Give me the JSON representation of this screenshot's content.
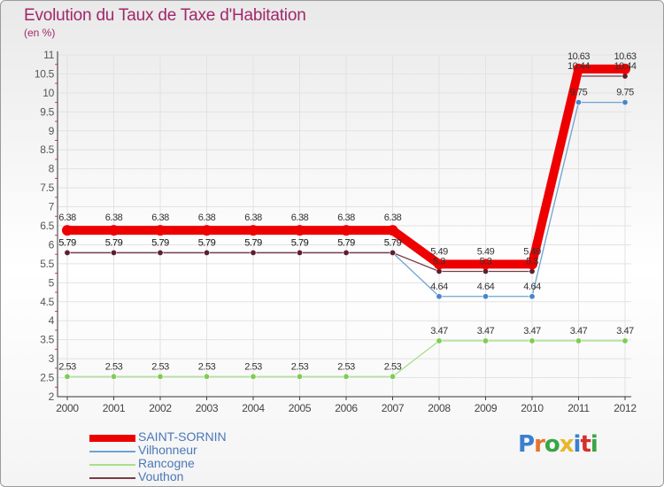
{
  "header": {
    "title": "Evolution du Taux de Taxe d'Habitation",
    "unit": "(en %)"
  },
  "brand": {
    "text": "Proxiti",
    "letter_colors": [
      "#3a7fd0",
      "#e8732a",
      "#3aa544",
      "#e8b62a",
      "#3a7fd0",
      "#d6302b",
      "#3aa544"
    ]
  },
  "chart_data": {
    "type": "line",
    "title": "Evolution du Taux de Taxe d'Habitation",
    "ylabel": "(en %)",
    "xlabel": "",
    "x": [
      "2000",
      "2001",
      "2002",
      "2003",
      "2004",
      "2005",
      "2006",
      "2007",
      "2008",
      "2009",
      "2010",
      "2011",
      "2012"
    ],
    "ylim": [
      2,
      11
    ],
    "yticks": [
      "2",
      "2.5",
      "3",
      "3.5",
      "4",
      "4.5",
      "5",
      "5.5",
      "6",
      "6.5",
      "7",
      "7.5",
      "8",
      "8.5",
      "9",
      "9.5",
      "10",
      "10.5",
      "11"
    ],
    "grid": true,
    "legend_position": "bottom-left",
    "series": [
      {
        "name": "SAINT-SORNIN",
        "color": "#ee0000",
        "emphasis": true,
        "values": [
          6.38,
          6.38,
          6.38,
          6.38,
          6.38,
          6.38,
          6.38,
          6.38,
          5.49,
          5.49,
          5.49,
          10.63,
          10.63
        ],
        "labels": [
          "6.38",
          "6.38",
          "6.38",
          "6.38",
          "6.38",
          "6.38",
          "6.38",
          "6.38",
          "5.49",
          "5.49",
          "5.49",
          "10.63",
          "10.63"
        ]
      },
      {
        "name": "Vilhonneur",
        "color": "#6fa3d2",
        "marker": "#4a86c8",
        "values": [
          5.79,
          5.79,
          5.79,
          5.79,
          5.79,
          5.79,
          5.79,
          5.79,
          4.64,
          4.64,
          4.64,
          9.75,
          9.75
        ],
        "labels": [
          "5.79",
          "5.79",
          "5.79",
          "5.79",
          "5.79",
          "5.79",
          "5.79",
          "5.79",
          "4.64",
          "4.64",
          "4.64",
          "9.75",
          "9.75"
        ]
      },
      {
        "name": "Rancogne",
        "color": "#a6e08a",
        "marker": "#7fcc55",
        "values": [
          2.53,
          2.53,
          2.53,
          2.53,
          2.53,
          2.53,
          2.53,
          2.53,
          3.47,
          3.47,
          3.47,
          3.47,
          3.47
        ],
        "labels": [
          "2.53",
          "2.53",
          "2.53",
          "2.53",
          "2.53",
          "2.53",
          "2.53",
          "2.53",
          "3.47",
          "3.47",
          "3.47",
          "3.47",
          "3.47"
        ]
      },
      {
        "name": "Vouthon",
        "color": "#7a3b45",
        "marker": "#5c1f2c",
        "values": [
          5.79,
          5.79,
          5.79,
          5.79,
          5.79,
          5.79,
          5.79,
          5.79,
          5.3,
          5.3,
          5.3,
          10.44,
          10.44
        ],
        "labels": [
          "5.79",
          "5.79",
          "5.79",
          "5.79",
          "5.79",
          "5.79",
          "5.79",
          "5.79",
          "5.3",
          "5.3",
          "5.3",
          "10.44",
          "10.44"
        ]
      }
    ]
  }
}
